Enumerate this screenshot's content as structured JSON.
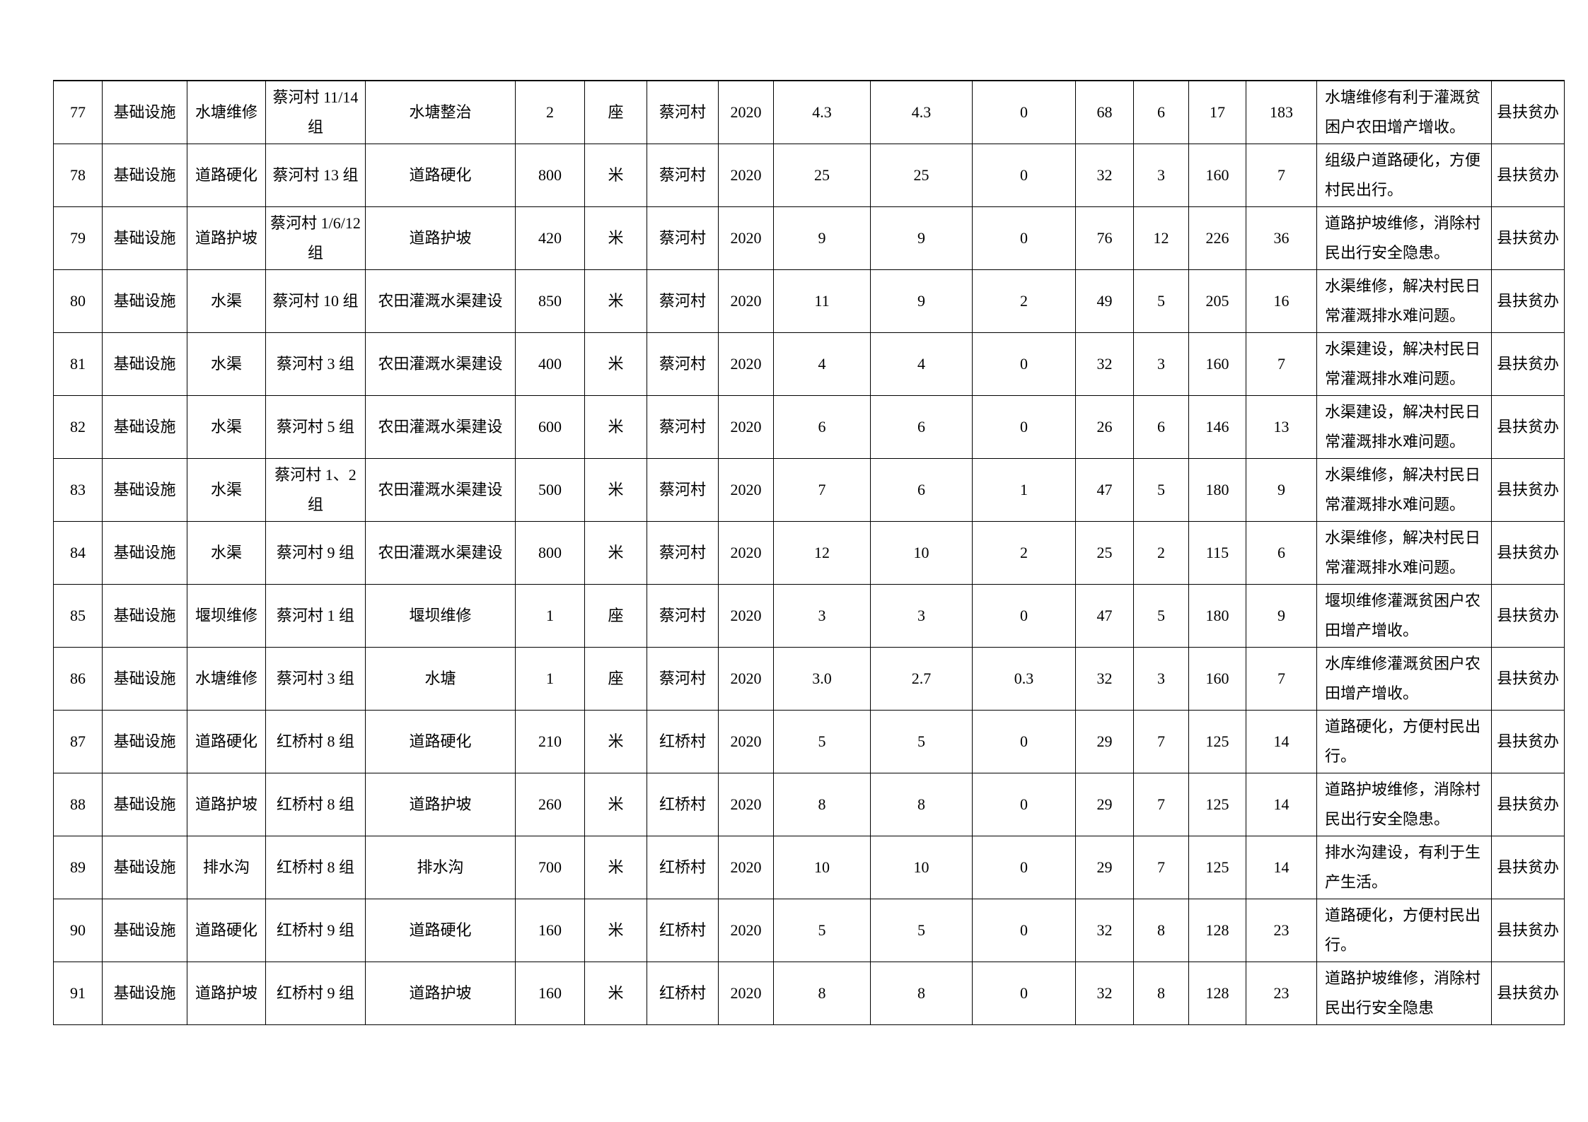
{
  "page": {
    "background_color": "#ffffff",
    "text_color": "#000000",
    "border_color": "#000000"
  },
  "table": {
    "column_keys": [
      "index",
      "category",
      "project_type",
      "location",
      "project_name",
      "quantity",
      "unit",
      "village",
      "year",
      "planned_investment",
      "investment_part1",
      "investment_part2",
      "stat1",
      "stat2",
      "stat3",
      "stat4",
      "description",
      "agency"
    ],
    "rows": [
      {
        "cells": [
          "77",
          "基础设施",
          "水塘维修",
          "蔡河村 11/14 组",
          "水塘整治",
          "2",
          "座",
          "蔡河村",
          "2020",
          "4.3",
          "4.3",
          "0",
          "68",
          "6",
          "17",
          "183",
          "水塘维修有利于灌溉贫困户农田增产增收。",
          "县扶贫办"
        ]
      },
      {
        "cells": [
          "78",
          "基础设施",
          "道路硬化",
          "蔡河村 13 组",
          "道路硬化",
          "800",
          "米",
          "蔡河村",
          "2020",
          "25",
          "25",
          "0",
          "32",
          "3",
          "160",
          "7",
          "组级户道路硬化，方便村民出行。",
          "县扶贫办"
        ]
      },
      {
        "cells": [
          "79",
          "基础设施",
          "道路护坡",
          "蔡河村 1/6/12 组",
          "道路护坡",
          "420",
          "米",
          "蔡河村",
          "2020",
          "9",
          "9",
          "0",
          "76",
          "12",
          "226",
          "36",
          "道路护坡维修，消除村民出行安全隐患。",
          "县扶贫办"
        ]
      },
      {
        "cells": [
          "80",
          "基础设施",
          "水渠",
          "蔡河村 10 组",
          "农田灌溉水渠建设",
          "850",
          "米",
          "蔡河村",
          "2020",
          "11",
          "9",
          "2",
          "49",
          "5",
          "205",
          "16",
          "水渠维修，解决村民日常灌溉排水难问题。",
          "县扶贫办"
        ]
      },
      {
        "cells": [
          "81",
          "基础设施",
          "水渠",
          "蔡河村 3 组",
          "农田灌溉水渠建设",
          "400",
          "米",
          "蔡河村",
          "2020",
          "4",
          "4",
          "0",
          "32",
          "3",
          "160",
          "7",
          "水渠建设，解决村民日常灌溉排水难问题。",
          "县扶贫办"
        ]
      },
      {
        "cells": [
          "82",
          "基础设施",
          "水渠",
          "蔡河村 5 组",
          "农田灌溉水渠建设",
          "600",
          "米",
          "蔡河村",
          "2020",
          "6",
          "6",
          "0",
          "26",
          "6",
          "146",
          "13",
          "水渠建设，解决村民日常灌溉排水难问题。",
          "县扶贫办"
        ]
      },
      {
        "cells": [
          "83",
          "基础设施",
          "水渠",
          "蔡河村 1、2 组",
          "农田灌溉水渠建设",
          "500",
          "米",
          "蔡河村",
          "2020",
          "7",
          "6",
          "1",
          "47",
          "5",
          "180",
          "9",
          "水渠维修，解决村民日常灌溉排水难问题。",
          "县扶贫办"
        ]
      },
      {
        "cells": [
          "84",
          "基础设施",
          "水渠",
          "蔡河村 9 组",
          "农田灌溉水渠建设",
          "800",
          "米",
          "蔡河村",
          "2020",
          "12",
          "10",
          "2",
          "25",
          "2",
          "115",
          "6",
          "水渠维修，解决村民日常灌溉排水难问题。",
          "县扶贫办"
        ]
      },
      {
        "cells": [
          "85",
          "基础设施",
          "堰坝维修",
          "蔡河村 1 组",
          "堰坝维修",
          "1",
          "座",
          "蔡河村",
          "2020",
          "3",
          "3",
          "0",
          "47",
          "5",
          "180",
          "9",
          "堰坝维修灌溉贫困户农田增产增收。",
          "县扶贫办"
        ]
      },
      {
        "cells": [
          "86",
          "基础设施",
          "水塘维修",
          "蔡河村 3 组",
          "水塘",
          "1",
          "座",
          "蔡河村",
          "2020",
          "3.0",
          "2.7",
          "0.3",
          "32",
          "3",
          "160",
          "7",
          "水库维修灌溉贫困户农田增产增收。",
          "县扶贫办"
        ]
      },
      {
        "cells": [
          "87",
          "基础设施",
          "道路硬化",
          "红桥村 8 组",
          "道路硬化",
          "210",
          "米",
          "红桥村",
          "2020",
          "5",
          "5",
          "0",
          "29",
          "7",
          "125",
          "14",
          "道路硬化，方便村民出行。",
          "县扶贫办"
        ]
      },
      {
        "cells": [
          "88",
          "基础设施",
          "道路护坡",
          "红桥村 8 组",
          "道路护坡",
          "260",
          "米",
          "红桥村",
          "2020",
          "8",
          "8",
          "0",
          "29",
          "7",
          "125",
          "14",
          "道路护坡维修，消除村民出行安全隐患。",
          "县扶贫办"
        ]
      },
      {
        "cells": [
          "89",
          "基础设施",
          "排水沟",
          "红桥村 8 组",
          "排水沟",
          "700",
          "米",
          "红桥村",
          "2020",
          "10",
          "10",
          "0",
          "29",
          "7",
          "125",
          "14",
          "排水沟建设，有利于生产生活。",
          "县扶贫办"
        ]
      },
      {
        "cells": [
          "90",
          "基础设施",
          "道路硬化",
          "红桥村 9 组",
          "道路硬化",
          "160",
          "米",
          "红桥村",
          "2020",
          "5",
          "5",
          "0",
          "32",
          "8",
          "128",
          "23",
          "道路硬化，方便村民出行。",
          "县扶贫办"
        ]
      },
      {
        "cells": [
          "91",
          "基础设施",
          "道路护坡",
          "红桥村 9 组",
          "道路护坡",
          "160",
          "米",
          "红桥村",
          "2020",
          "8",
          "8",
          "0",
          "32",
          "8",
          "128",
          "23",
          "道路护坡维修，消除村民出行安全隐患",
          "县扶贫办"
        ]
      }
    ]
  }
}
